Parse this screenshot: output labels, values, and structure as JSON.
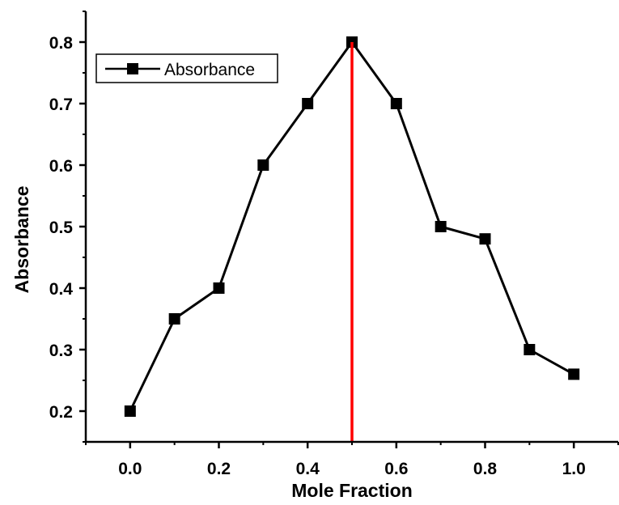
{
  "chart_data": {
    "type": "line",
    "xlabel": "Mole Fraction",
    "ylabel": "Absorbance",
    "xlim": [
      -0.1,
      1.1
    ],
    "ylim": [
      0.15,
      0.85
    ],
    "x_ticks": [
      0.0,
      0.2,
      0.4,
      0.6,
      0.8,
      1.0
    ],
    "x_tick_labels": [
      "0.0",
      "0.2",
      "0.4",
      "0.6",
      "0.8",
      "1.0"
    ],
    "x_minor_ticks": [
      -0.1,
      0.1,
      0.3,
      0.5,
      0.7,
      0.9,
      1.1
    ],
    "y_ticks": [
      0.2,
      0.3,
      0.4,
      0.5,
      0.6,
      0.7,
      0.8
    ],
    "y_tick_labels": [
      "0.2",
      "0.3",
      "0.4",
      "0.5",
      "0.6",
      "0.7",
      "0.8"
    ],
    "y_minor_ticks": [
      0.15,
      0.25,
      0.35,
      0.45,
      0.55,
      0.65,
      0.75,
      0.85
    ],
    "grid": false,
    "legend": {
      "placement": "top-left",
      "entries": [
        "Absorbance"
      ]
    },
    "series": [
      {
        "name": "Absorbance",
        "color": "#000000",
        "marker": "square",
        "x": [
          0.0,
          0.1,
          0.2,
          0.3,
          0.4,
          0.5,
          0.6,
          0.7,
          0.8,
          0.9,
          1.0
        ],
        "y": [
          0.2,
          0.35,
          0.4,
          0.6,
          0.7,
          0.8,
          0.7,
          0.5,
          0.48,
          0.3,
          0.26
        ]
      }
    ],
    "reference_line": {
      "orientation": "vertical",
      "x": 0.5,
      "color": "#ff0000"
    }
  }
}
